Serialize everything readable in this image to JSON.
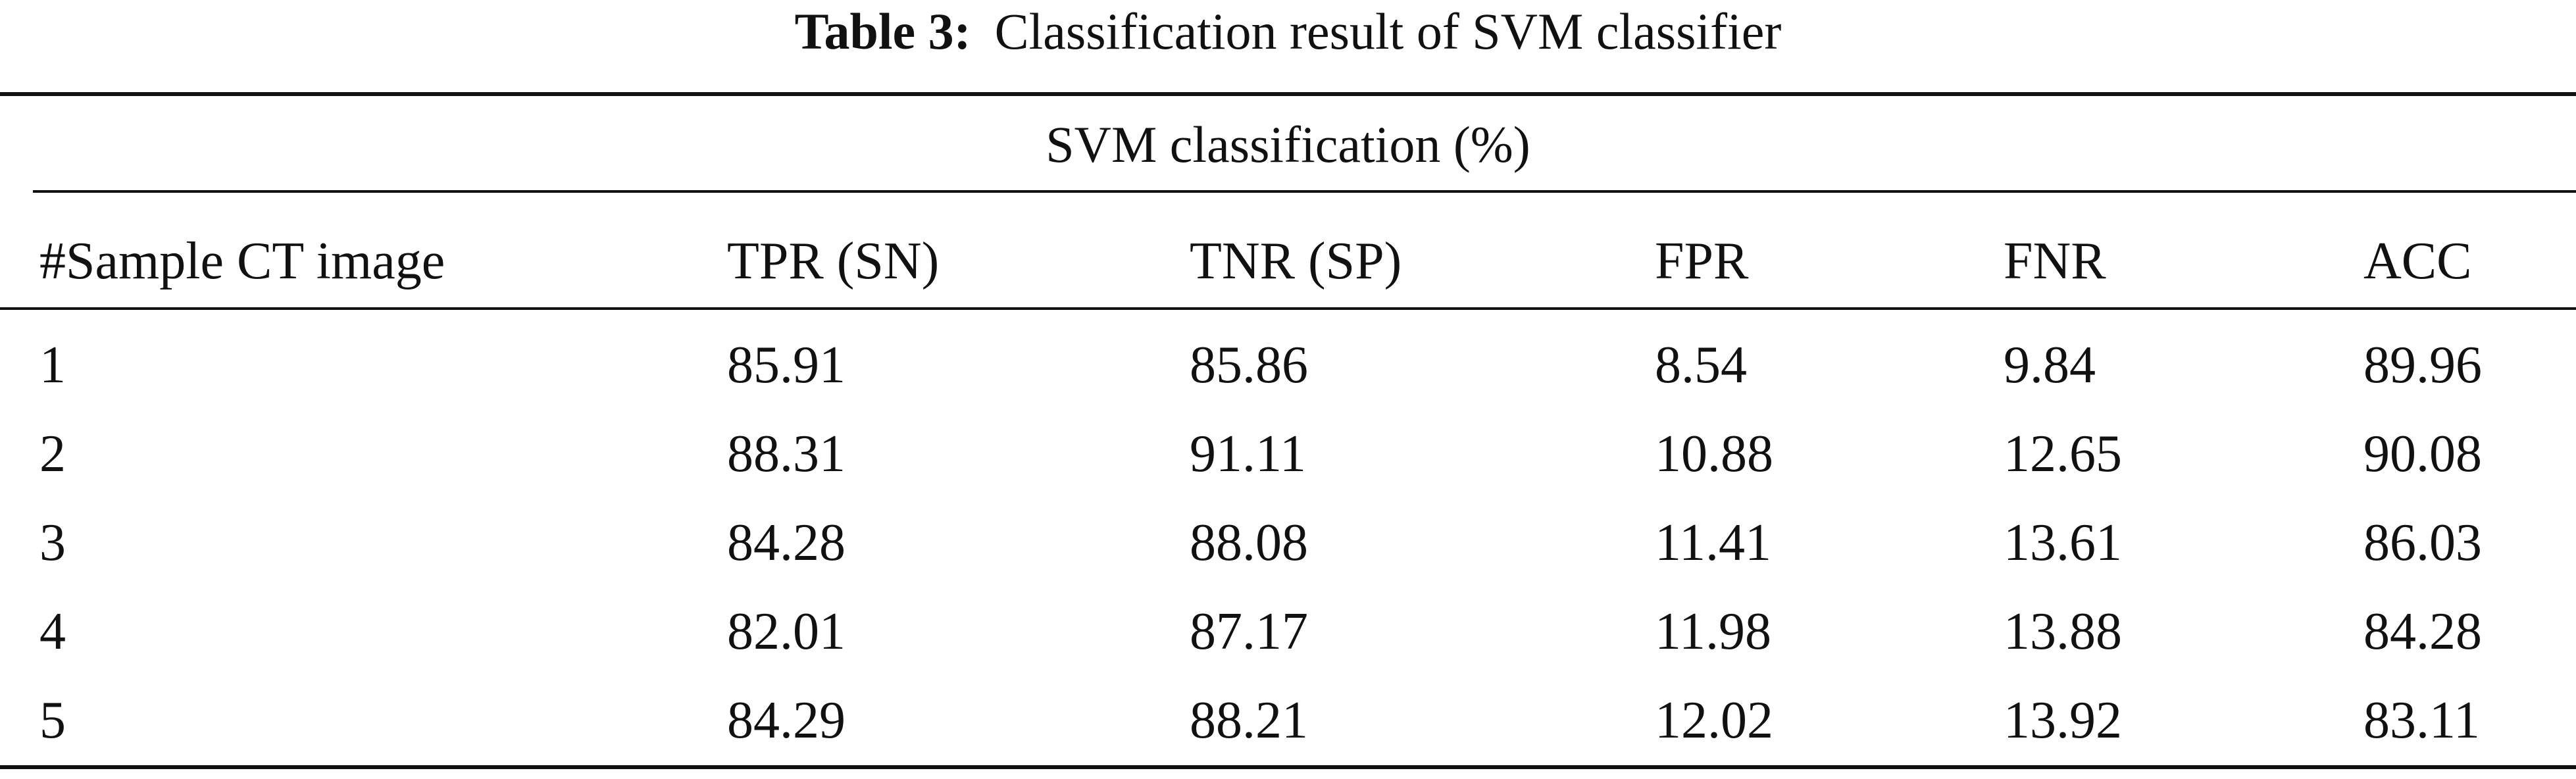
{
  "caption": {
    "label": "Table 3:",
    "text": "Classification result of SVM classifier"
  },
  "group_header": "SVM classification (%)",
  "columns": [
    "#Sample CT image",
    "TPR (SN)",
    "TNR (SP)",
    "FPR",
    "FNR",
    "ACC"
  ],
  "rows": [
    [
      "1",
      "85.91",
      "85.86",
      "8.54",
      "9.84",
      "89.96"
    ],
    [
      "2",
      "88.31",
      "91.11",
      "10.88",
      "12.65",
      "90.08"
    ],
    [
      "3",
      "84.28",
      "88.08",
      "11.41",
      "13.61",
      "86.03"
    ],
    [
      "4",
      "82.01",
      "87.17",
      "11.98",
      "13.88",
      "84.28"
    ],
    [
      "5",
      "84.29",
      "88.21",
      "12.02",
      "13.92",
      "83.11"
    ]
  ]
}
